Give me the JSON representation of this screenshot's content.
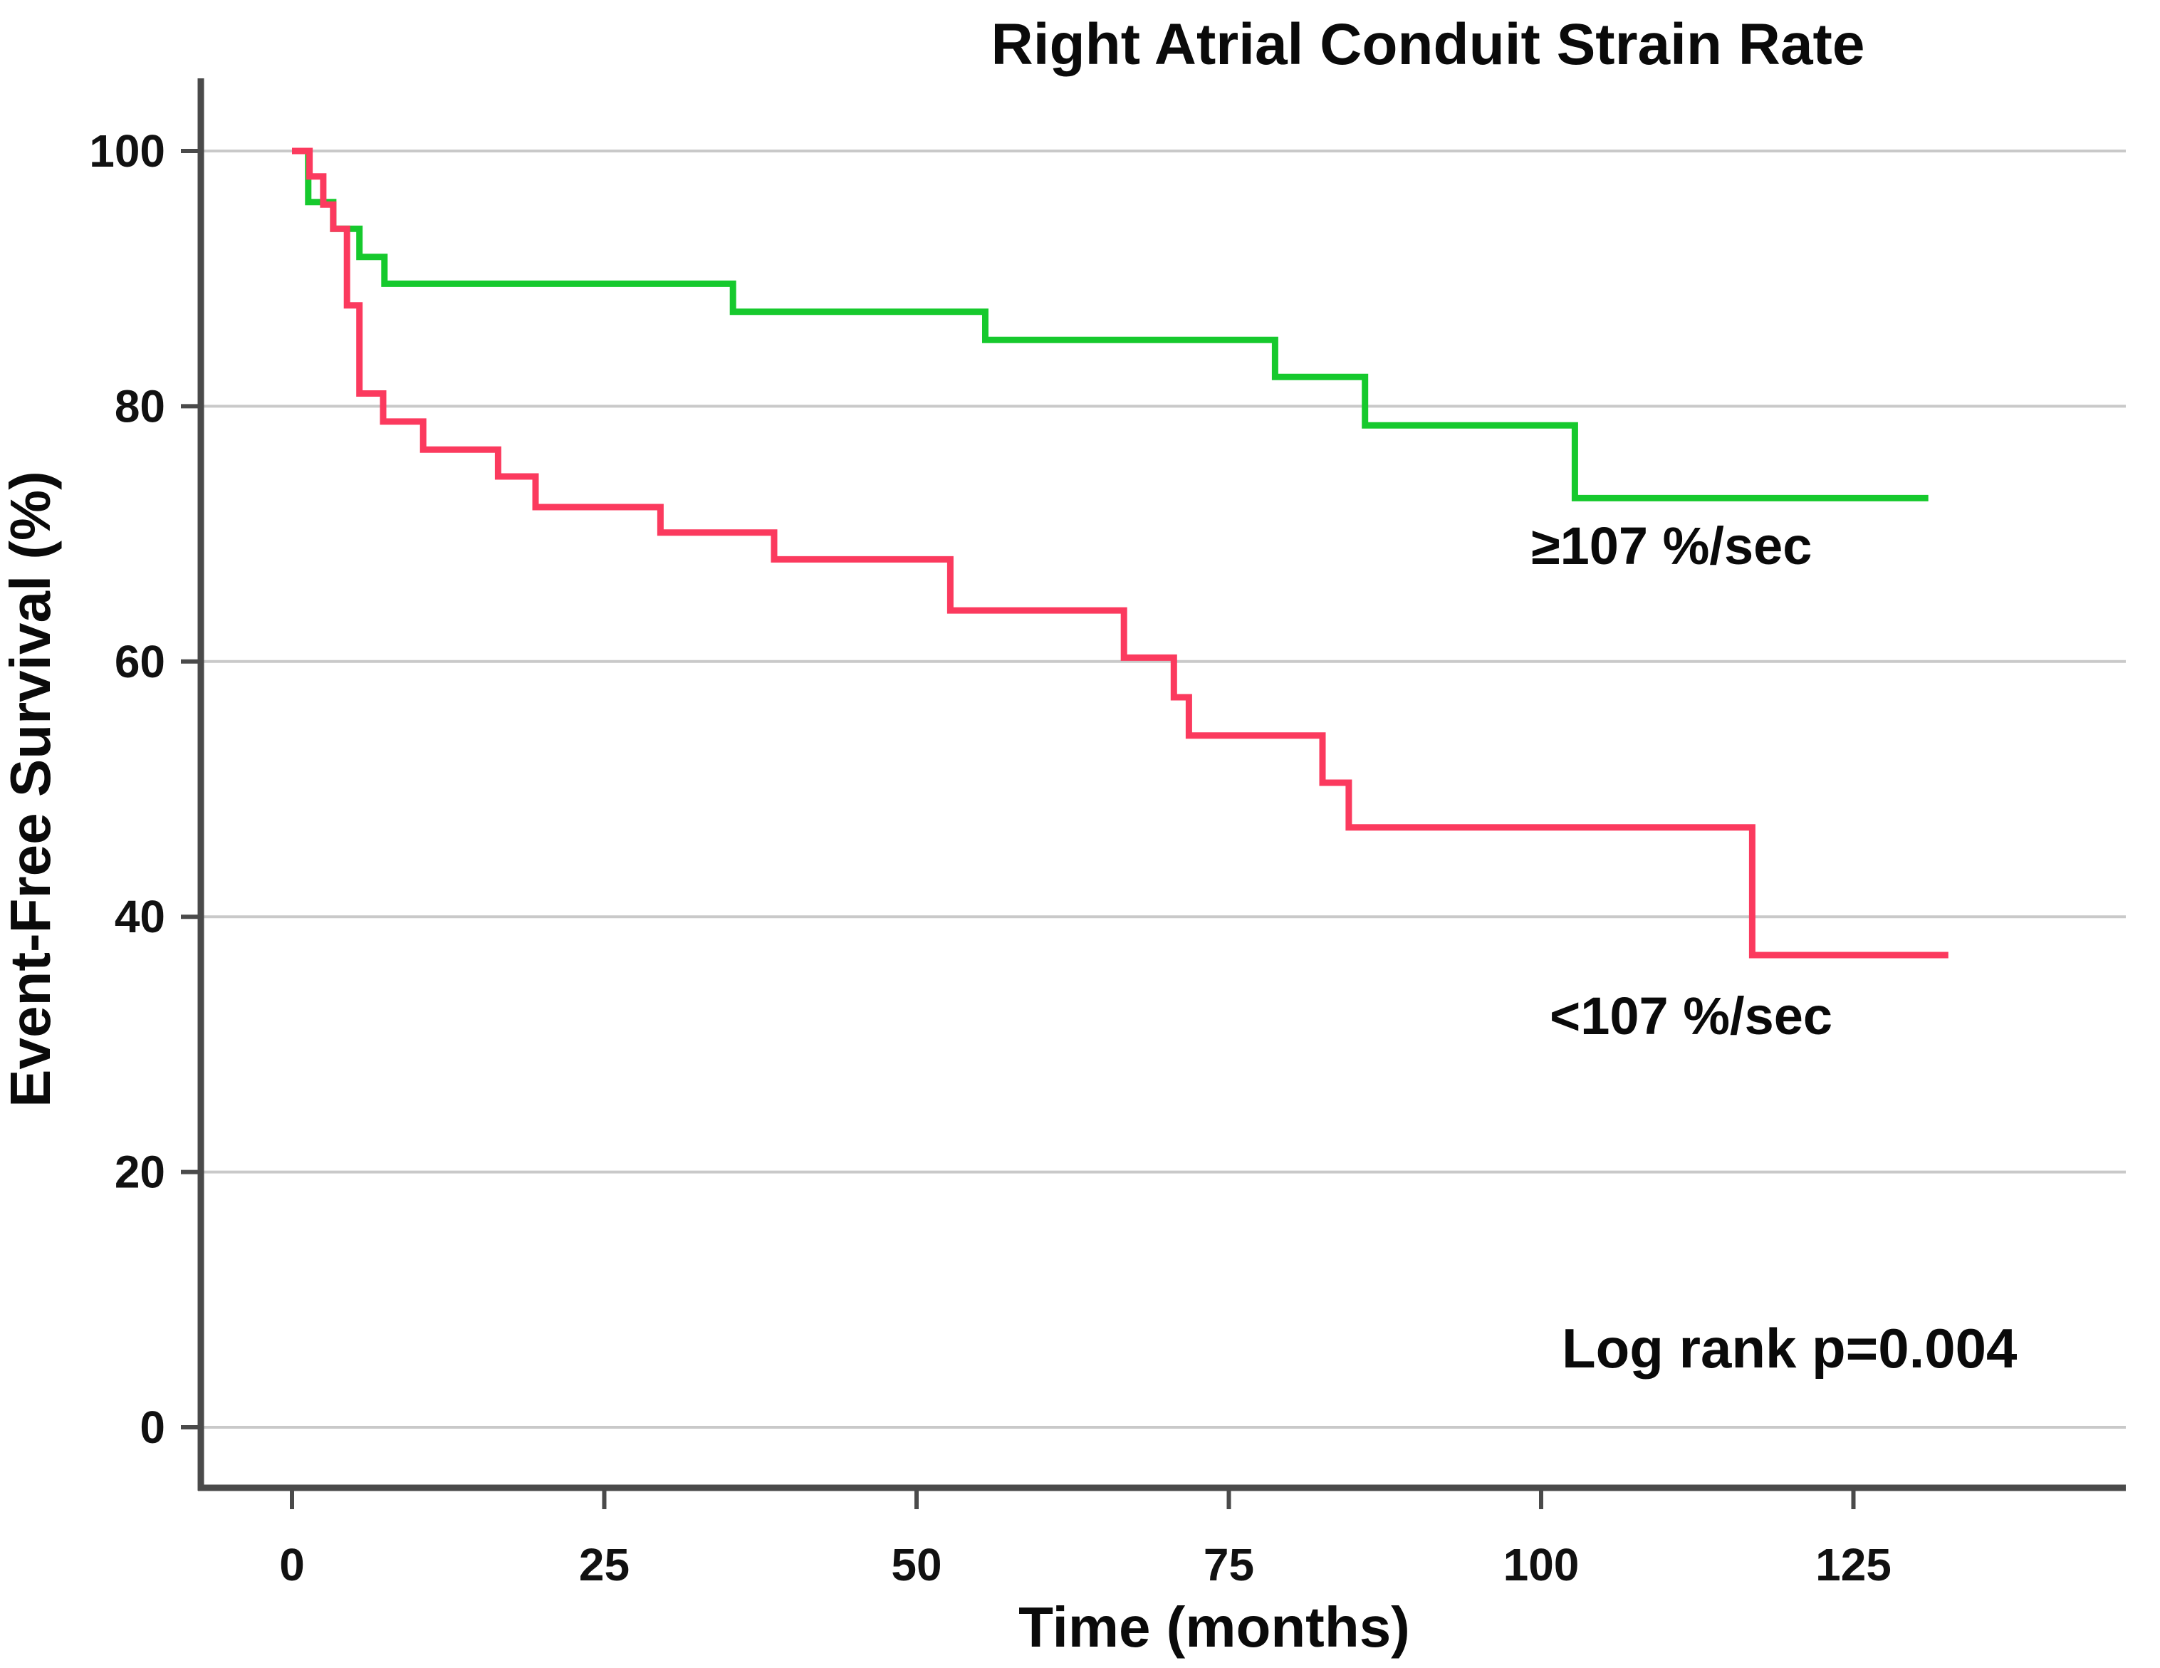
{
  "title": "Right Atrial Conduit Strain Rate",
  "axes": {
    "x_title": "Time (months)",
    "y_title": "Event-Free Survival (%)"
  },
  "annotations": {
    "group_high": "≥107 %/sec",
    "group_low": "<107 %/sec",
    "log_rank": "Log rank p=0.004"
  },
  "colors": {
    "green_line": "#16c92d",
    "red_line": "#fb3a5e",
    "gridline": "#c9c9c9",
    "axis": "#4a4a4a"
  },
  "chart_data": {
    "type": "line",
    "subtype": "kaplan-meier-step",
    "title": "Right Atrial Conduit Strain Rate",
    "xlabel": "Time (months)",
    "ylabel": "Event-Free Survival (%)",
    "xlim": [
      -7,
      147
    ],
    "ylim": [
      -5,
      106
    ],
    "x_ticks": [
      0,
      25,
      50,
      75,
      100,
      125
    ],
    "y_ticks": [
      100,
      80,
      60,
      40,
      20,
      0
    ],
    "grid": "horizontal-only",
    "legend_position": "inline-annotations",
    "annotation": "Log rank p=0.004",
    "step": "post",
    "series": [
      {
        "name": "≥107 %/sec",
        "color": "#16c92d",
        "points": [
          [
            0,
            100
          ],
          [
            1.3,
            96.0
          ],
          [
            3.3,
            93.9
          ],
          [
            5.4,
            91.7
          ],
          [
            7.4,
            89.6
          ],
          [
            35.3,
            87.4
          ],
          [
            55.5,
            85.2
          ],
          [
            78.7,
            82.3
          ],
          [
            85.9,
            78.5
          ],
          [
            102.7,
            72.8
          ]
        ],
        "end_x": 131
      },
      {
        "name": "<107 %/sec",
        "color": "#fb3a5e",
        "points": [
          [
            0,
            100
          ],
          [
            1.4,
            98.0
          ],
          [
            2.5,
            95.8
          ],
          [
            3.3,
            93.9
          ],
          [
            4.4,
            87.9
          ],
          [
            5.4,
            81.0
          ],
          [
            7.3,
            78.8
          ],
          [
            10.5,
            76.6
          ],
          [
            16.5,
            74.5
          ],
          [
            19.5,
            72.1
          ],
          [
            29.5,
            70.1
          ],
          [
            38.6,
            68.0
          ],
          [
            52.7,
            64.0
          ],
          [
            66.6,
            60.3
          ],
          [
            70.6,
            57.2
          ],
          [
            71.8,
            54.2
          ],
          [
            82.5,
            50.5
          ],
          [
            84.6,
            47.0
          ],
          [
            116.9,
            37.0
          ]
        ],
        "end_x": 132.6
      }
    ]
  }
}
